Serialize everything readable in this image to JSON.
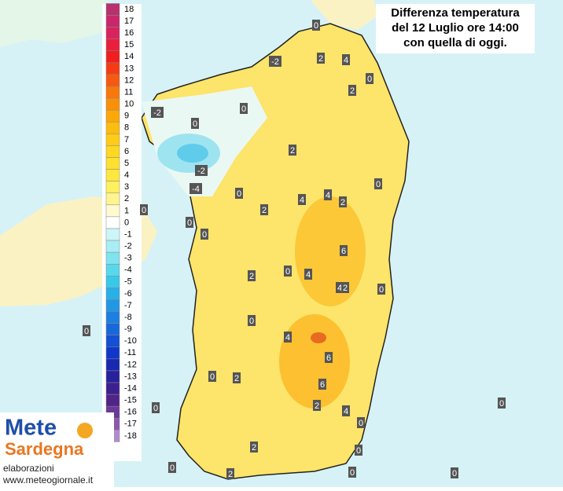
{
  "header": {
    "title_lines": [
      "Differenza temperatura",
      "del 12 Luglio ore 14:00",
      "con quella di oggi."
    ]
  },
  "legend": {
    "entries": [
      {
        "value": 18,
        "color": "#b8306e"
      },
      {
        "value": 17,
        "color": "#c8286a"
      },
      {
        "value": 16,
        "color": "#d8245e"
      },
      {
        "value": 15,
        "color": "#e8203c"
      },
      {
        "value": 14,
        "color": "#f01e1e"
      },
      {
        "value": 13,
        "color": "#f43c14"
      },
      {
        "value": 12,
        "color": "#f65a10"
      },
      {
        "value": 11,
        "color": "#f8780c"
      },
      {
        "value": 10,
        "color": "#fa9008"
      },
      {
        "value": 9,
        "color": "#fca808"
      },
      {
        "value": 8,
        "color": "#fdbc10"
      },
      {
        "value": 7,
        "color": "#fecc18"
      },
      {
        "value": 6,
        "color": "#fed820"
      },
      {
        "value": 5,
        "color": "#fee030"
      },
      {
        "value": 4,
        "color": "#fee840"
      },
      {
        "value": 3,
        "color": "#fff060"
      },
      {
        "value": 2,
        "color": "#fff490"
      },
      {
        "value": 1,
        "color": "#fffad0"
      },
      {
        "value": 0,
        "color": "#ffffff"
      },
      {
        "value": -1,
        "color": "#ccf6f8"
      },
      {
        "value": -2,
        "color": "#a8eef4"
      },
      {
        "value": -3,
        "color": "#80e4f0"
      },
      {
        "value": -4,
        "color": "#58d8ec"
      },
      {
        "value": -5,
        "color": "#38c8ea"
      },
      {
        "value": -6,
        "color": "#28b0e8"
      },
      {
        "value": -7,
        "color": "#2098e6"
      },
      {
        "value": -8,
        "color": "#1c80e2"
      },
      {
        "value": -9,
        "color": "#1868dc"
      },
      {
        "value": -10,
        "color": "#1450d4"
      },
      {
        "value": -11,
        "color": "#1038c8"
      },
      {
        "value": -12,
        "color": "#1828b0"
      },
      {
        "value": -13,
        "color": "#28209c"
      },
      {
        "value": -14,
        "color": "#3c2090"
      },
      {
        "value": -15,
        "color": "#502488"
      },
      {
        "value": -16,
        "color": "#6c3898"
      },
      {
        "value": -17,
        "color": "#8a58b0"
      },
      {
        "value": -18,
        "color": "#b08ccc"
      }
    ]
  },
  "map_labels": [
    0,
    -2,
    2,
    4,
    0,
    2,
    -2,
    0,
    0,
    2,
    -2,
    -4,
    0,
    0,
    2,
    4,
    4,
    2,
    0,
    0,
    0,
    6,
    2,
    0,
    4,
    4,
    2,
    0,
    0,
    0,
    4,
    6,
    0,
    2,
    6,
    0,
    2,
    4,
    0,
    2,
    0,
    0,
    2,
    0,
    0,
    0
  ],
  "logo": {
    "part1": "Mete",
    "part2": "Sardegna"
  },
  "credits": {
    "line1": "elaborazioni",
    "line2": "www.meteogiornale.it"
  }
}
